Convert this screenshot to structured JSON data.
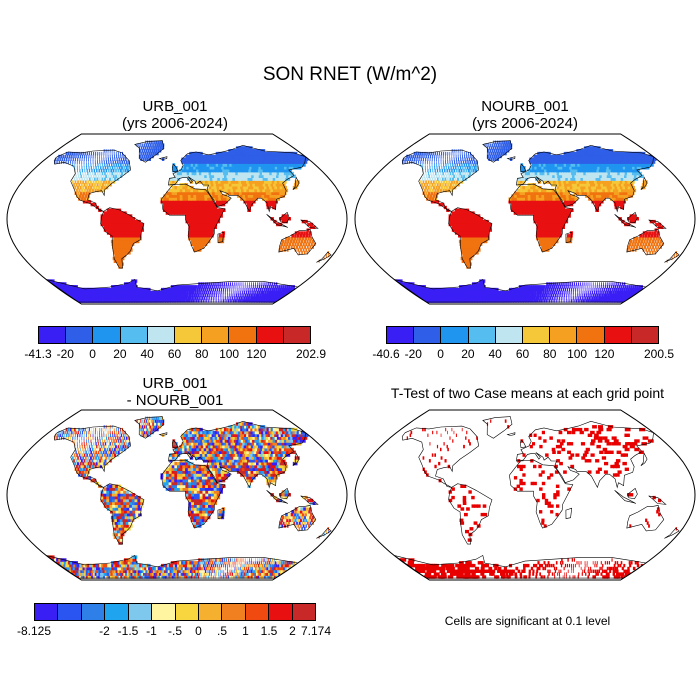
{
  "title": "SON RNET (W/m^2)",
  "panels": [
    {
      "id": "urb",
      "title_line1": "URB_001",
      "title_line2": "(yrs 2006-2024)",
      "type": "mean",
      "colorbar": {
        "colors": [
          "#3a1ff5",
          "#2f5fe8",
          "#1f95f0",
          "#55bdf0",
          "#bfe6f0",
          "#f5c83a",
          "#f5a020",
          "#f07310",
          "#e81010",
          "#c82828"
        ],
        "labels": [
          "-41.3",
          "-20",
          "0",
          "20",
          "40",
          "60",
          "80",
          "100",
          "120",
          "202.9"
        ]
      }
    },
    {
      "id": "nourb",
      "title_line1": "NOURB_001",
      "title_line2": "(yrs 2006-2024)",
      "type": "mean",
      "colorbar": {
        "colors": [
          "#3a1ff5",
          "#2f5fe8",
          "#1f95f0",
          "#55bdf0",
          "#bfe6f0",
          "#f5c83a",
          "#f5a020",
          "#f07310",
          "#e81010",
          "#c82828"
        ],
        "labels": [
          "-40.6",
          "-20",
          "0",
          "20",
          "40",
          "60",
          "80",
          "100",
          "120",
          "200.5"
        ]
      }
    },
    {
      "id": "diff",
      "title_line1": "URB_001",
      "title_line2": "- NOURB_001",
      "type": "difference",
      "colorbar": {
        "colors": [
          "#3a1ff5",
          "#2a55f0",
          "#2f7fe8",
          "#1fa5f0",
          "#7ec8ee",
          "#fff5a0",
          "#f7d640",
          "#f5b030",
          "#f08020",
          "#f04a10",
          "#e81010",
          "#c82828"
        ],
        "labels": [
          "-8.125",
          "-2",
          "-1.5",
          "-1",
          "-.5",
          "0",
          ".5",
          "1",
          "1.5",
          "2",
          "7.174"
        ]
      }
    },
    {
      "id": "ttest",
      "title_line1": "T-Test of two Case means at each grid point",
      "note": "Cells are significant at 0.1 level",
      "type": "significance",
      "sig_color": "#e80000"
    }
  ]
}
